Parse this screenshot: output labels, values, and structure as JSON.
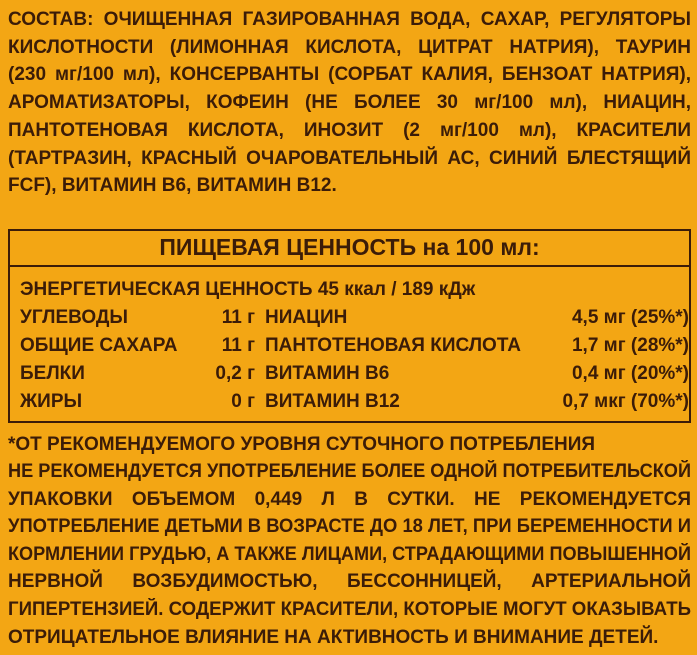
{
  "composition": {
    "lines": [
      "СОСТАВ: ОЧИЩЕННАЯ ГАЗИРОВАННАЯ ВОДА, САХАР, РЕГУЛЯТОРЫ",
      "КИСЛОТНОСТИ (ЛИМОННАЯ КИСЛОТА, ЦИТРАТ НАТРИЯ), ТАУРИН",
      "(230 мг/100 мл), КОНСЕРВАНТЫ (СОРБАТ КАЛИЯ, БЕНЗОАТ НАТРИЯ),",
      "АРОМАТИЗАТОРЫ, КОФЕИН (НЕ БОЛЕЕ 30 мг/100 мл), НИАЦИН,",
      "ПАНТОТЕНОВАЯ КИСЛОТА, ИНОЗИТ (2 мг/100 мл), КРАСИТЕЛИ",
      "(ТАРТРАЗИН, КРАСНЫЙ ОЧАРОВАТЕЛЬНЫЙ АС, СИНИЙ БЛЕСТЯЩИЙ",
      "FCF), ВИТАМИН В6, ВИТАМИН В12."
    ]
  },
  "nutrition": {
    "title": "ПИЩЕВАЯ ЦЕННОСТЬ на 100 мл:",
    "energy": "ЭНЕРГЕТИЧЕСКАЯ ЦЕННОСТЬ 45 ккал / 189 кДж",
    "rows": [
      [
        "УГЛЕВОДЫ",
        "11 г",
        "НИАЦИН",
        "4,5 мг (25%*)"
      ],
      [
        "ОБЩИЕ САХАРА",
        "11 г",
        "ПАНТОТЕНОВАЯ КИСЛОТА",
        "1,7 мг (28%*)"
      ],
      [
        "БЕЛКИ",
        "0,2 г",
        "ВИТАМИН В6",
        "0,4 мг (20%*)"
      ],
      [
        "ЖИРЫ",
        "0 г",
        "ВИТАМИН В12",
        "0,7 мкг (70%*)"
      ]
    ]
  },
  "footnote": "*ОТ РЕКОМЕНДУЕМОГО УРОВНЯ СУТОЧНОГО ПОТРЕБЛЕНИЯ",
  "warning": {
    "lines": [
      "НЕ РЕКОМЕНДУЕТСЯ УПОТРЕБЛЕНИЕ БОЛЕЕ ОДНОЙ ПОТРЕБИТЕЛЬСКОЙ",
      "УПАКОВКИ ОБЪЕМОМ 0,449 Л В СУТКИ. НЕ РЕКОМЕНДУЕТСЯ",
      "УПОТРЕБЛЕНИЕ ДЕТЬМИ В ВОЗРАСТЕ ДО 18 ЛЕТ, ПРИ БЕРЕМЕННОСТИ И",
      "КОРМЛЕНИИ ГРУДЬЮ, А ТАКЖЕ ЛИЦАМИ, СТРАДАЮЩИМИ ПОВЫШЕННОЙ",
      "НЕРВНОЙ ВОЗБУДИМОСТЬЮ, БЕССОННИЦЕЙ, АРТЕРИАЛЬНОЙ",
      "ГИПЕРТЕНЗИЕЙ. СОДЕРЖИТ КРАСИТЕЛИ, КОТОРЫЕ МОГУТ ОКАЗЫВАТЬ",
      "ОТРИЦАТЕЛЬНОЕ ВЛИЯНИЕ НА АКТИВНОСТЬ И ВНИМАНИЕ ДЕТЕЙ."
    ]
  }
}
